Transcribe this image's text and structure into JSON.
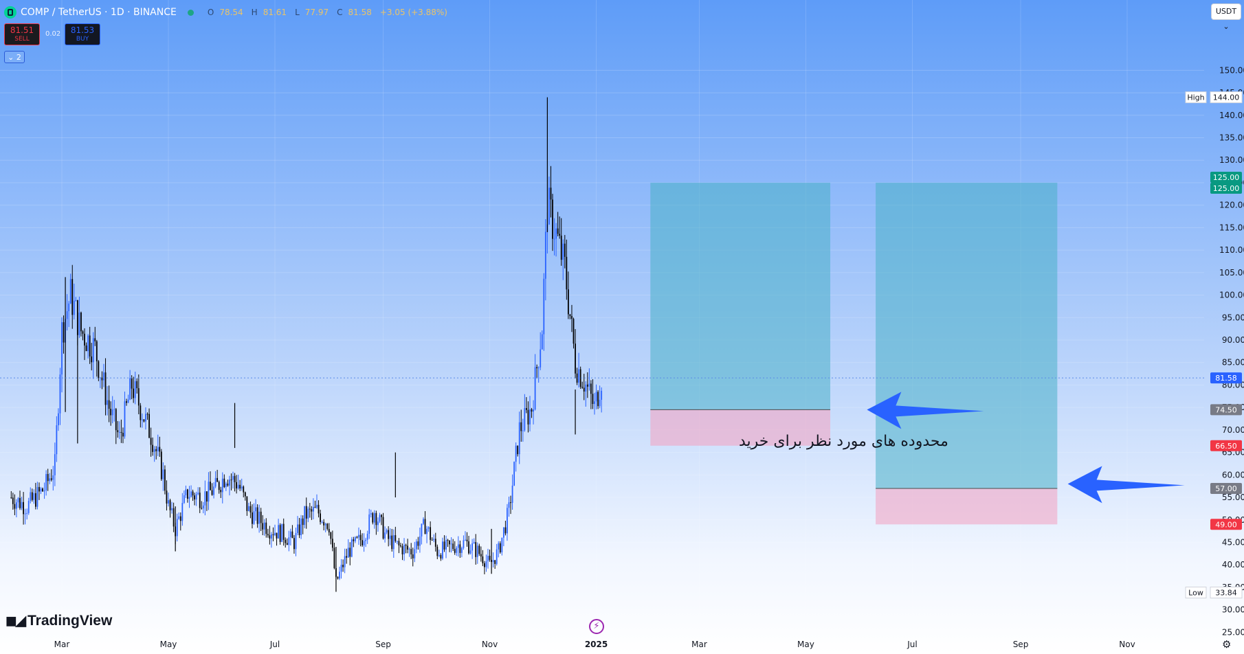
{
  "header": {
    "symbol": "COMP / TetherUS · 1D · BINANCE",
    "ohlc": [
      {
        "label": "O",
        "value": "78.54"
      },
      {
        "label": "H",
        "value": "81.61"
      },
      {
        "label": "L",
        "value": "77.97"
      },
      {
        "label": "C",
        "value": "81.58"
      }
    ],
    "change": "+3.05 (+3.88%)"
  },
  "trade": {
    "sell_price": "81.51",
    "sell_label": "SELL",
    "spread": "0.02",
    "buy_price": "81.53",
    "buy_label": "BUY"
  },
  "indicators_toggle": "⌄ 2",
  "currency": "USDT ⌄",
  "annotation_text": "محدوده های مورد نظر برای خرید",
  "branding": "TradingView",
  "colors": {
    "up": "#2962ff",
    "down": "#000000",
    "target": "#4bb0c8",
    "stop": "#f2a7c4",
    "arrow": "#2962ff"
  },
  "chart_data": {
    "type": "candlestick",
    "symbol": "COMP/USDT",
    "interval": "1D",
    "ylim": [
      22,
      158
    ],
    "x_ticks": [
      "Mar",
      "May",
      "Jul",
      "Sep",
      "Nov",
      "2025",
      "Mar",
      "May",
      "Jul",
      "Sep",
      "Nov"
    ],
    "x_tick_dates": [
      "2024-03-01",
      "2024-05-01",
      "2024-07-01",
      "2024-09-01",
      "2024-11-01",
      "2025-01-01",
      "2025-03-01",
      "2025-05-01",
      "2025-07-01",
      "2025-09-01",
      "2025-11-01"
    ],
    "y_ticks": [
      "150.00",
      "145.00",
      "140.00",
      "135.00",
      "130.00",
      "125.00",
      "120.00",
      "115.00",
      "110.00",
      "105.00",
      "100.00",
      "95.00",
      "90.00",
      "85.00",
      "80.00",
      "75.00",
      "70.00",
      "65.00",
      "60.00",
      "55.00",
      "50.00",
      "45.00",
      "40.00",
      "35.00",
      "30.00",
      "25.00"
    ],
    "close_path": [
      [
        "2024-02-01",
        55
      ],
      [
        "2024-02-10",
        53
      ],
      [
        "2024-02-20",
        57
      ],
      [
        "2024-02-26",
        62
      ],
      [
        "2024-03-01",
        92
      ],
      [
        "2024-03-06",
        100
      ],
      [
        "2024-03-12",
        92
      ],
      [
        "2024-03-20",
        88
      ],
      [
        "2024-03-28",
        75
      ],
      [
        "2024-04-03",
        68
      ],
      [
        "2024-04-10",
        80
      ],
      [
        "2024-04-16",
        74
      ],
      [
        "2024-04-22",
        68
      ],
      [
        "2024-04-28",
        60
      ],
      [
        "2024-05-01",
        53
      ],
      [
        "2024-05-05",
        48
      ],
      [
        "2024-05-12",
        56
      ],
      [
        "2024-05-20",
        55
      ],
      [
        "2024-05-28",
        57
      ],
      [
        "2024-06-03",
        60
      ],
      [
        "2024-06-10",
        58
      ],
      [
        "2024-06-16",
        52
      ],
      [
        "2024-06-22",
        50
      ],
      [
        "2024-06-28",
        48
      ],
      [
        "2024-07-05",
        47
      ],
      [
        "2024-07-12",
        45
      ],
      [
        "2024-07-18",
        51
      ],
      [
        "2024-07-25",
        52
      ],
      [
        "2024-08-01",
        49
      ],
      [
        "2024-08-05",
        36
      ],
      [
        "2024-08-12",
        43
      ],
      [
        "2024-08-20",
        46
      ],
      [
        "2024-08-27",
        52
      ],
      [
        "2024-09-03",
        46
      ],
      [
        "2024-09-10",
        44
      ],
      [
        "2024-09-18",
        43
      ],
      [
        "2024-09-25",
        49
      ],
      [
        "2024-10-02",
        43
      ],
      [
        "2024-10-10",
        44
      ],
      [
        "2024-10-18",
        45
      ],
      [
        "2024-10-25",
        43
      ],
      [
        "2024-11-01",
        40
      ],
      [
        "2024-11-06",
        43
      ],
      [
        "2024-11-12",
        52
      ],
      [
        "2024-11-18",
        70
      ],
      [
        "2024-11-25",
        75
      ],
      [
        "2024-12-01",
        93
      ],
      [
        "2024-12-04",
        120
      ],
      [
        "2024-12-08",
        115
      ],
      [
        "2024-12-14",
        106
      ],
      [
        "2024-12-20",
        85
      ],
      [
        "2024-12-26",
        80
      ],
      [
        "2024-12-31",
        75
      ],
      [
        "2025-01-04",
        81.58
      ]
    ],
    "spikes": [
      [
        "2024-03-03",
        104
      ],
      [
        "2024-03-10",
        97
      ],
      [
        "2024-05-05",
        43
      ],
      [
        "2024-06-08",
        66
      ],
      [
        "2024-08-05",
        34
      ],
      [
        "2024-09-08",
        55
      ],
      [
        "2024-11-02",
        38
      ],
      [
        "2024-12-04",
        144
      ],
      [
        "2024-12-20",
        69
      ]
    ],
    "last_price": 81.58,
    "high": {
      "label": "High",
      "value": "144.00"
    },
    "low": {
      "label": "Low",
      "value": "33.84"
    },
    "positions": [
      {
        "start": "2025-02-01",
        "end": "2025-05-15",
        "entry": 74.5,
        "target": 125,
        "stop": 66.5
      },
      {
        "start": "2025-06-10",
        "end": "2025-09-22",
        "entry": 57,
        "target": 125,
        "stop": 49
      }
    ],
    "price_tags": [
      {
        "value": 125,
        "text": "125.00",
        "color": "#089981"
      },
      {
        "value": 125,
        "text": "125.00",
        "color": "#089981"
      },
      {
        "value": 81.58,
        "text": "81.58",
        "color": "#2962ff"
      },
      {
        "value": 74.5,
        "text": "74.50",
        "color": "#787b86"
      },
      {
        "value": 66.5,
        "text": "66.50",
        "color": "#f23645"
      },
      {
        "value": 57,
        "text": "57.00",
        "color": "#787b86"
      },
      {
        "value": 49,
        "text": "49.00",
        "color": "#f23645"
      }
    ],
    "arrows": [
      {
        "tip_date": "2025-06-05",
        "tip_value": 74.5
      },
      {
        "tip_date": "2025-09-28",
        "tip_value": 58
      }
    ]
  }
}
